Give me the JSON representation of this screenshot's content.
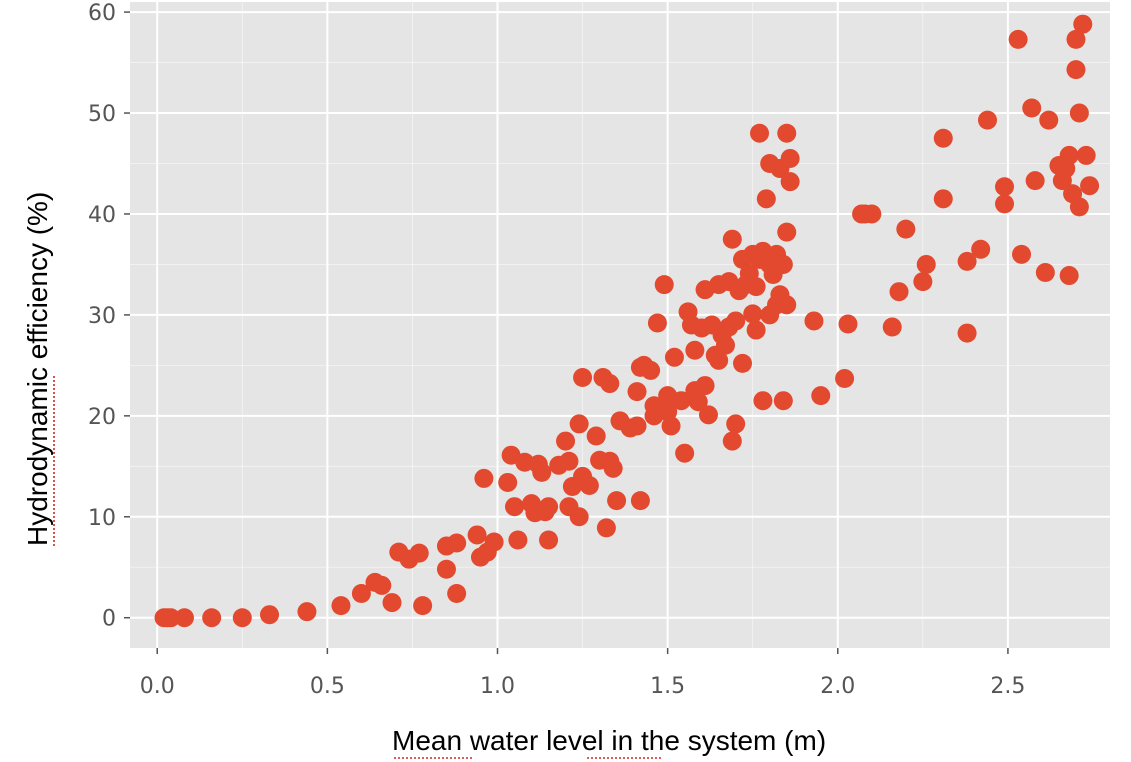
{
  "chart_data": {
    "type": "scatter",
    "title": "",
    "xlabel": "Mean water level in the system (m)",
    "ylabel": "Hydrodynamic efficiency (%)",
    "xlim": [
      -0.08,
      2.8
    ],
    "ylim": [
      -3,
      61
    ],
    "xticks": [
      0.0,
      0.5,
      1.0,
      1.5,
      2.0,
      2.5
    ],
    "xtick_labels": [
      "0.0",
      "0.5",
      "1.0",
      "1.5",
      "2.0",
      "2.5"
    ],
    "yticks": [
      0,
      10,
      20,
      30,
      40,
      50,
      60
    ],
    "ytick_labels": [
      "0",
      "10",
      "20",
      "30",
      "40",
      "50",
      "60"
    ],
    "grid": true,
    "legend": "none",
    "style": {
      "plot_background": "#e5e5e5",
      "grid_color": "#ffffff",
      "marker_color": "#e2492f",
      "tick_color": "#555555"
    },
    "series": [
      {
        "points": [
          [
            0.02,
            0.0
          ],
          [
            0.03,
            0.0
          ],
          [
            0.04,
            0.0
          ],
          [
            0.08,
            0.0
          ],
          [
            0.16,
            0.0
          ],
          [
            0.25,
            0.0
          ],
          [
            0.33,
            0.3
          ],
          [
            0.44,
            0.6
          ],
          [
            0.54,
            1.2
          ],
          [
            0.6,
            2.4
          ],
          [
            0.64,
            3.5
          ],
          [
            0.66,
            3.2
          ],
          [
            0.69,
            1.5
          ],
          [
            0.71,
            6.5
          ],
          [
            0.74,
            5.8
          ],
          [
            0.77,
            6.4
          ],
          [
            0.78,
            1.2
          ],
          [
            0.85,
            4.8
          ],
          [
            0.85,
            7.1
          ],
          [
            0.88,
            7.4
          ],
          [
            0.88,
            2.4
          ],
          [
            0.94,
            8.2
          ],
          [
            0.95,
            6.0
          ],
          [
            0.96,
            13.8
          ],
          [
            0.97,
            6.5
          ],
          [
            0.99,
            7.5
          ],
          [
            1.03,
            13.4
          ],
          [
            1.04,
            16.1
          ],
          [
            1.05,
            11.0
          ],
          [
            1.06,
            7.7
          ],
          [
            1.08,
            15.4
          ],
          [
            1.1,
            11.3
          ],
          [
            1.11,
            10.4
          ],
          [
            1.12,
            15.2
          ],
          [
            1.13,
            14.4
          ],
          [
            1.14,
            10.5
          ],
          [
            1.15,
            11.0
          ],
          [
            1.15,
            7.7
          ],
          [
            1.18,
            15.1
          ],
          [
            1.2,
            17.5
          ],
          [
            1.21,
            15.5
          ],
          [
            1.21,
            11.0
          ],
          [
            1.22,
            13.0
          ],
          [
            1.24,
            19.2
          ],
          [
            1.24,
            10.0
          ],
          [
            1.25,
            23.8
          ],
          [
            1.25,
            14.0
          ],
          [
            1.27,
            13.1
          ],
          [
            1.29,
            18.0
          ],
          [
            1.3,
            15.6
          ],
          [
            1.31,
            23.8
          ],
          [
            1.32,
            8.9
          ],
          [
            1.33,
            15.5
          ],
          [
            1.33,
            23.2
          ],
          [
            1.34,
            14.8
          ],
          [
            1.35,
            11.6
          ],
          [
            1.36,
            19.5
          ],
          [
            1.39,
            18.8
          ],
          [
            1.41,
            19.0
          ],
          [
            1.41,
            22.4
          ],
          [
            1.42,
            11.6
          ],
          [
            1.42,
            24.8
          ],
          [
            1.43,
            25.0
          ],
          [
            1.45,
            24.5
          ],
          [
            1.46,
            20.0
          ],
          [
            1.46,
            21.0
          ],
          [
            1.47,
            29.2
          ],
          [
            1.49,
            33.0
          ],
          [
            1.5,
            22.0
          ],
          [
            1.5,
            20.4
          ],
          [
            1.51,
            19.0
          ],
          [
            1.52,
            25.8
          ],
          [
            1.54,
            21.5
          ],
          [
            1.55,
            16.3
          ],
          [
            1.56,
            30.3
          ],
          [
            1.57,
            29.0
          ],
          [
            1.58,
            22.5
          ],
          [
            1.58,
            26.5
          ],
          [
            1.59,
            21.4
          ],
          [
            1.6,
            28.7
          ],
          [
            1.61,
            32.5
          ],
          [
            1.61,
            23.0
          ],
          [
            1.62,
            20.1
          ],
          [
            1.63,
            29.0
          ],
          [
            1.64,
            26.0
          ],
          [
            1.65,
            33.0
          ],
          [
            1.65,
            25.5
          ],
          [
            1.66,
            28.0
          ],
          [
            1.67,
            27.0
          ],
          [
            1.68,
            33.3
          ],
          [
            1.68,
            28.8
          ],
          [
            1.69,
            17.5
          ],
          [
            1.69,
            37.5
          ],
          [
            1.7,
            29.4
          ],
          [
            1.7,
            19.2
          ],
          [
            1.71,
            32.4
          ],
          [
            1.72,
            35.5
          ],
          [
            1.72,
            25.2
          ],
          [
            1.73,
            33.0
          ],
          [
            1.74,
            34.1
          ],
          [
            1.75,
            36.0
          ],
          [
            1.75,
            30.1
          ],
          [
            1.76,
            32.8
          ],
          [
            1.76,
            28.5
          ],
          [
            1.77,
            35.5
          ],
          [
            1.77,
            48.0
          ],
          [
            1.78,
            21.5
          ],
          [
            1.78,
            36.3
          ],
          [
            1.79,
            41.5
          ],
          [
            1.8,
            45.0
          ],
          [
            1.8,
            30.0
          ],
          [
            1.8,
            35.0
          ],
          [
            1.81,
            34.0
          ],
          [
            1.82,
            36.0
          ],
          [
            1.82,
            31.0
          ],
          [
            1.83,
            44.5
          ],
          [
            1.83,
            32.0
          ],
          [
            1.84,
            35.0
          ],
          [
            1.84,
            21.5
          ],
          [
            1.85,
            48.0
          ],
          [
            1.85,
            31.0
          ],
          [
            1.85,
            38.2
          ],
          [
            1.86,
            45.5
          ],
          [
            1.86,
            43.2
          ],
          [
            1.93,
            29.4
          ],
          [
            1.95,
            22.0
          ],
          [
            2.02,
            23.7
          ],
          [
            2.03,
            29.1
          ],
          [
            2.07,
            40.0
          ],
          [
            2.08,
            40.0
          ],
          [
            2.1,
            40.0
          ],
          [
            2.16,
            28.8
          ],
          [
            2.18,
            32.3
          ],
          [
            2.2,
            38.5
          ],
          [
            2.25,
            33.3
          ],
          [
            2.26,
            35.0
          ],
          [
            2.31,
            47.5
          ],
          [
            2.31,
            41.5
          ],
          [
            2.38,
            28.2
          ],
          [
            2.38,
            35.3
          ],
          [
            2.42,
            36.5
          ],
          [
            2.44,
            49.3
          ],
          [
            2.49,
            42.7
          ],
          [
            2.49,
            41.0
          ],
          [
            2.53,
            57.3
          ],
          [
            2.54,
            36.0
          ],
          [
            2.57,
            50.5
          ],
          [
            2.58,
            43.3
          ],
          [
            2.61,
            34.2
          ],
          [
            2.62,
            49.3
          ],
          [
            2.65,
            44.8
          ],
          [
            2.66,
            43.3
          ],
          [
            2.67,
            44.5
          ],
          [
            2.68,
            33.9
          ],
          [
            2.68,
            45.8
          ],
          [
            2.69,
            42.0
          ],
          [
            2.7,
            57.3
          ],
          [
            2.7,
            54.3
          ],
          [
            2.71,
            50.0
          ],
          [
            2.71,
            40.7
          ],
          [
            2.72,
            58.8
          ],
          [
            2.73,
            45.8
          ],
          [
            2.74,
            42.8
          ]
        ]
      }
    ]
  }
}
